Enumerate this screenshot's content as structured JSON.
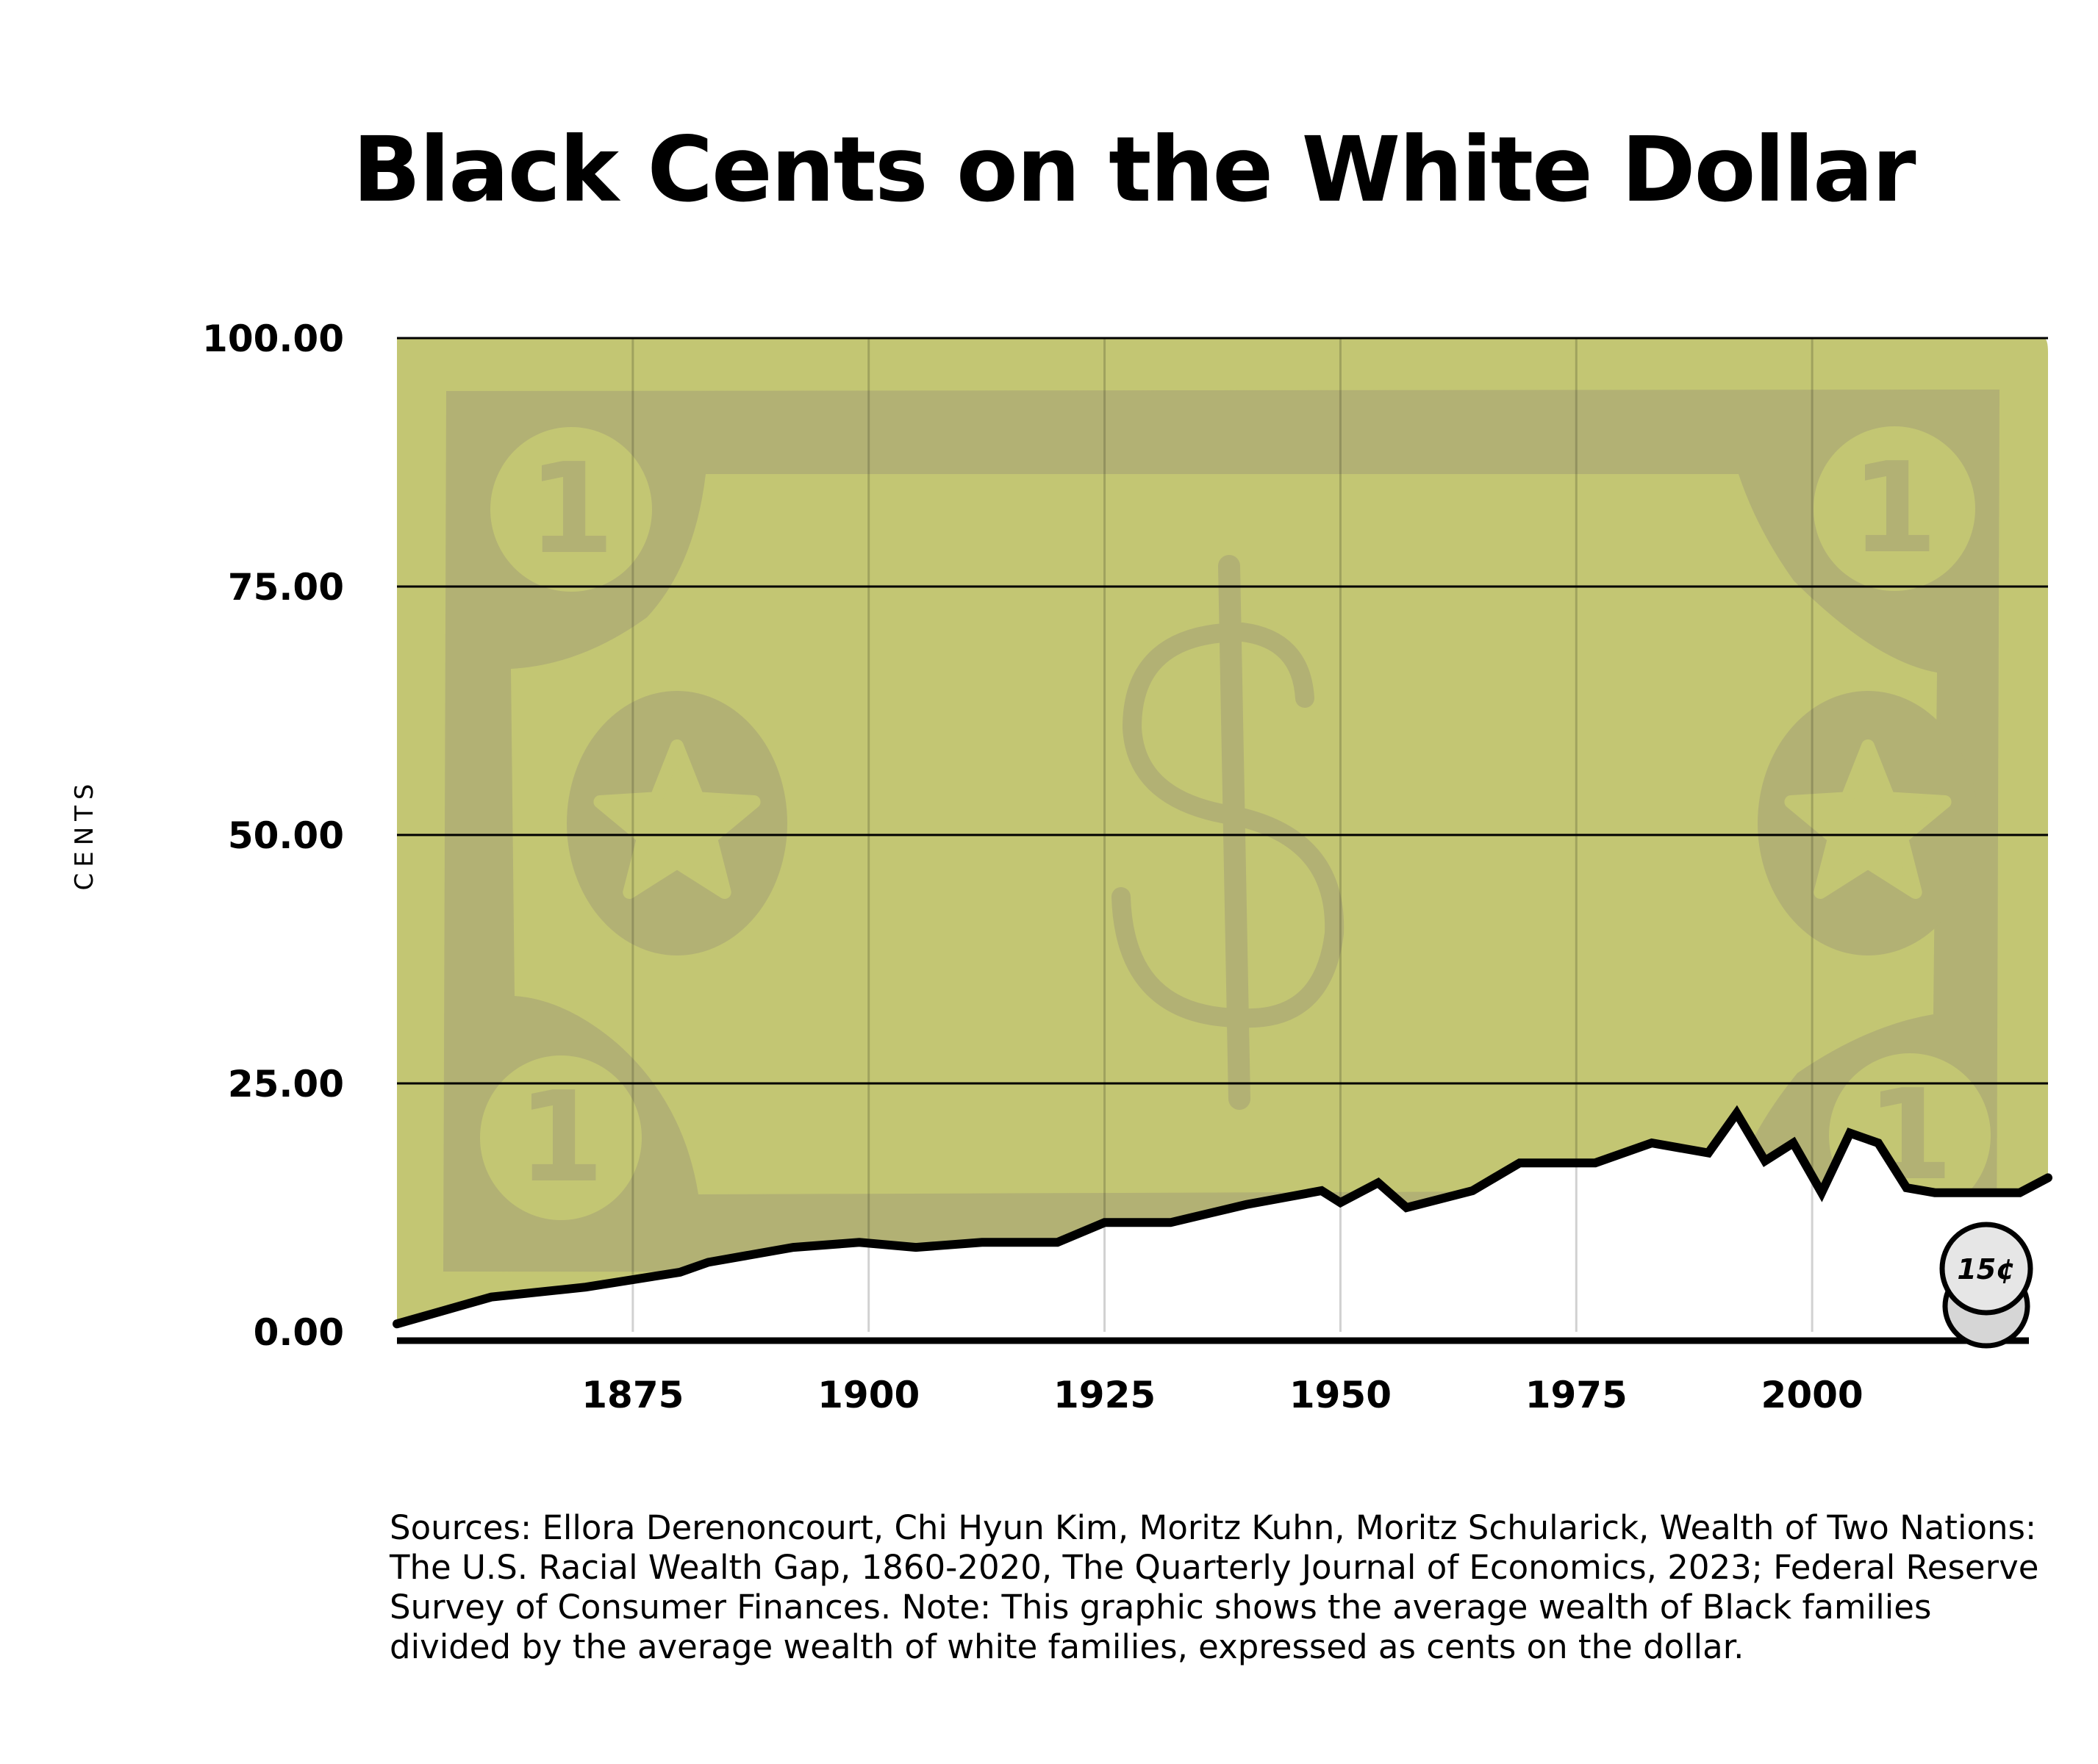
{
  "chart_data": {
    "type": "area",
    "title": "Black Cents on the White Dollar",
    "ylabel": "CENTS",
    "xlabel": "",
    "ylim": [
      0,
      100
    ],
    "xlim": [
      1850,
      2025
    ],
    "yticks": [
      "100.00",
      "75.00",
      "50.00",
      "25.00",
      "0.00"
    ],
    "ytick_values": [
      100,
      75,
      50,
      25,
      0
    ],
    "xticks": [
      "1875",
      "1900",
      "1925",
      "1950",
      "1975",
      "2000"
    ],
    "xtick_values": [
      1875,
      1900,
      1925,
      1950,
      1975,
      2000
    ],
    "grid": "horizontal",
    "fill_color": "#c3c673",
    "bill_color": "#b2b174",
    "line_color": "#000000",
    "annotation": "15¢",
    "x": [
      1850,
      1860,
      1870,
      1880,
      1883,
      1892,
      1899,
      1905,
      1912,
      1920,
      1925,
      1932,
      1940,
      1944,
      1948,
      1950,
      1954,
      1957,
      1964,
      1969,
      1977,
      1983,
      1989,
      1992,
      1995,
      1998,
      2001,
      2004,
      2007,
      2010,
      2013,
      2016,
      2019,
      2022,
      2025
    ],
    "values": [
      0.8,
      3.5,
      4.5,
      6,
      7,
      8.5,
      9,
      8.5,
      9,
      9,
      11,
      11,
      12.8,
      13.5,
      14.2,
      13,
      15,
      12.5,
      14.2,
      17,
      17,
      19,
      18,
      22,
      17.2,
      19,
      14,
      20,
      19,
      14.5,
      14,
      14,
      14,
      14,
      15.5
    ]
  },
  "sources": "Sources: Ellora Derenoncourt, Chi Hyun Kim, Moritz Kuhn, Moritz Schularick, Wealth of Two Nations: The U.S. Racial Wealth Gap, 1860-2020, The Quarterly Journal of Economics, 2023; Federal Reserve Survey of Consumer Finances. Note: This graphic shows the average wealth of Black families divided by the average wealth of white families, expressed as cents on the dollar."
}
